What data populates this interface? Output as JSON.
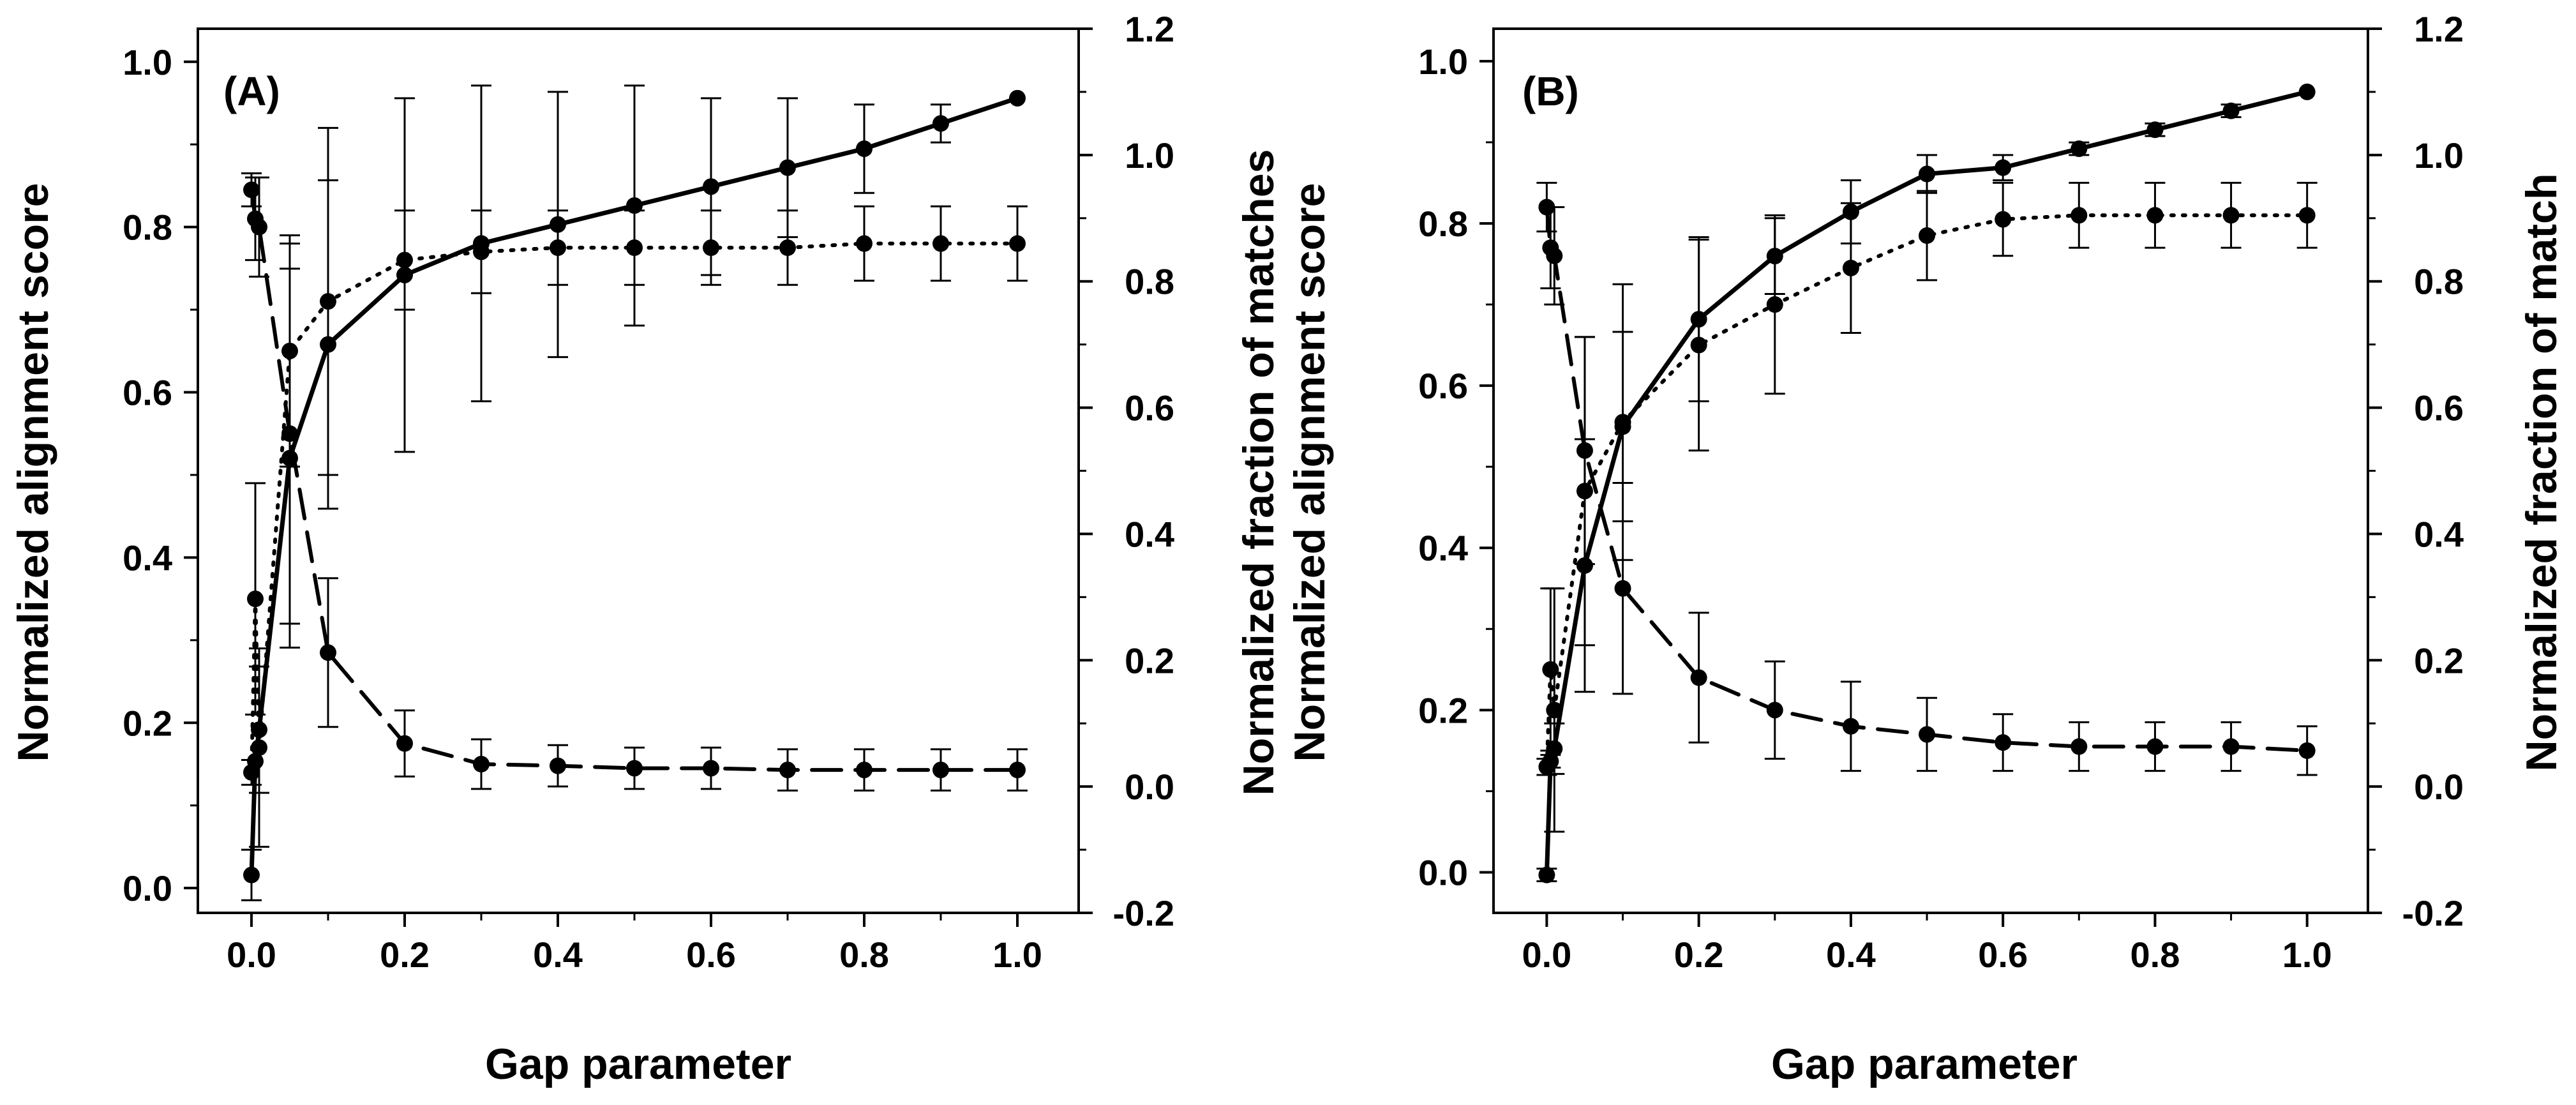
{
  "chart_data": [
    {
      "type": "line",
      "panel_label": "(A)",
      "xlabel": "Gap parameter",
      "ylabel": "Normalized alignment score",
      "ylabel_right": "Normalized fraction of matches",
      "xlim": [
        -0.07,
        1.08
      ],
      "ylim": [
        -0.03,
        1.04
      ],
      "ylim_right": [
        -0.2,
        1.2
      ],
      "xticks": [
        "0.0",
        "0.2",
        "0.4",
        "0.6",
        "0.8",
        "1.0"
      ],
      "yticks": [
        "0.0",
        "0.2",
        "0.4",
        "0.6",
        "0.8",
        "1.0"
      ],
      "yticks_right": [
        "-0.2",
        "0.0",
        "0.2",
        "0.4",
        "0.6",
        "0.8",
        "1.0",
        "1.2"
      ],
      "x": [
        0,
        0.005,
        0.01,
        0.05,
        0.1,
        0.2,
        0.3,
        0.4,
        0.5,
        0.6,
        0.7,
        0.8,
        0.9,
        1.0
      ],
      "series": [
        {
          "style": "solid",
          "axis": "right",
          "values": [
            -0.14,
            0.04,
            0.09,
            0.52,
            0.7,
            0.81,
            0.86,
            0.89,
            0.92,
            0.95,
            0.98,
            1.01,
            1.05,
            1.09
          ],
          "errors": [
            0.04,
            0.0,
            0.1,
            0.3,
            0.26,
            0.28,
            0.25,
            0.21,
            0.19,
            0.14,
            0.11,
            0.07,
            0.03,
            0.0
          ]
        },
        {
          "style": "dotted",
          "axis": "left",
          "values": [
            0.14,
            0.35,
            0.17,
            0.65,
            0.71,
            0.76,
            0.77,
            0.775,
            0.775,
            0.775,
            0.775,
            0.78,
            0.78,
            0.78
          ],
          "errors": [
            0.015,
            0.14,
            0.12,
            0.14,
            0.21,
            0.06,
            0.05,
            0.045,
            0.045,
            0.045,
            0.045,
            0.045,
            0.045,
            0.045
          ]
        },
        {
          "style": "dashed",
          "axis": "left",
          "values": [
            0.845,
            0.81,
            0.8,
            0.55,
            0.285,
            0.175,
            0.15,
            0.148,
            0.145,
            0.145,
            0.143,
            0.143,
            0.143,
            0.143
          ],
          "errors": [
            0.02,
            0.05,
            0.06,
            0.23,
            0.09,
            0.04,
            0.03,
            0.025,
            0.025,
            0.025,
            0.025,
            0.025,
            0.025,
            0.025
          ]
        }
      ]
    },
    {
      "type": "line",
      "panel_label": "(B)",
      "xlabel": "Gap parameter",
      "ylabel": "Normalized alignment score",
      "ylabel_right": "Normalized fraction of match",
      "xlim": [
        -0.07,
        1.08
      ],
      "ylim": [
        -0.05,
        1.04
      ],
      "ylim_right": [
        -0.2,
        1.2
      ],
      "xticks": [
        "0.0",
        "0.2",
        "0.4",
        "0.6",
        "0.8",
        "1.0"
      ],
      "yticks": [
        "0.0",
        "0.2",
        "0.4",
        "0.6",
        "0.8",
        "1.0"
      ],
      "yticks_right": [
        "-0.2",
        "0.0",
        "0.2",
        "0.4",
        "0.6",
        "0.8",
        "1.0",
        "1.2"
      ],
      "x": [
        0,
        0.005,
        0.01,
        0.05,
        0.1,
        0.2,
        0.3,
        0.4,
        0.5,
        0.6,
        0.7,
        0.8,
        0.9,
        1.0
      ],
      "series": [
        {
          "style": "solid",
          "axis": "right",
          "values": [
            -0.14,
            0.04,
            0.06,
            0.35,
            0.57,
            0.74,
            0.84,
            0.91,
            0.97,
            0.98,
            1.01,
            1.04,
            1.07,
            1.1
          ],
          "errors": [
            0.01,
            0.01,
            0.04,
            0.2,
            0.15,
            0.13,
            0.06,
            0.05,
            0.03,
            0.02,
            0.01,
            0.01,
            0.01,
            0.0
          ]
        },
        {
          "style": "dotted",
          "axis": "left",
          "values": [
            0.13,
            0.25,
            0.2,
            0.47,
            0.555,
            0.65,
            0.7,
            0.745,
            0.785,
            0.805,
            0.81,
            0.81,
            0.81,
            0.81
          ],
          "errors": [
            0.01,
            0.1,
            0.15,
            0.19,
            0.17,
            0.13,
            0.11,
            0.08,
            0.055,
            0.045,
            0.04,
            0.04,
            0.04,
            0.04
          ]
        },
        {
          "style": "dashed",
          "axis": "left",
          "values": [
            0.82,
            0.77,
            0.76,
            0.52,
            0.35,
            0.24,
            0.2,
            0.18,
            0.17,
            0.16,
            0.155,
            0.155,
            0.155,
            0.15
          ],
          "errors": [
            0.03,
            0.05,
            0.06,
            0.14,
            0.13,
            0.08,
            0.06,
            0.055,
            0.045,
            0.035,
            0.03,
            0.03,
            0.03,
            0.03
          ]
        }
      ]
    }
  ]
}
